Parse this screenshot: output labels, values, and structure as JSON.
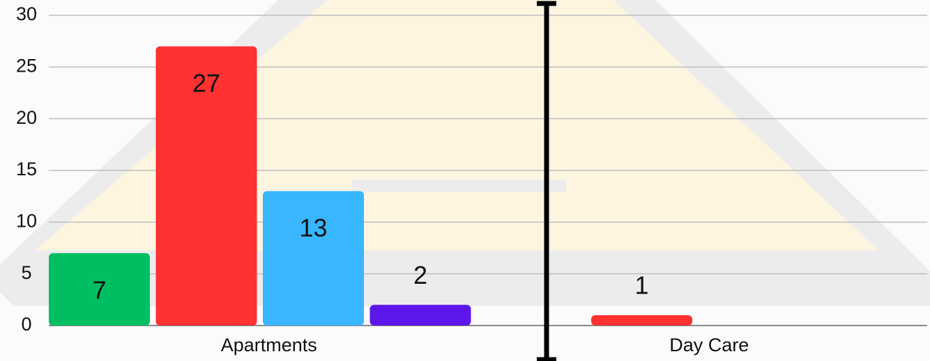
{
  "chart_data": {
    "type": "bar",
    "categories": [
      "Apartments",
      "Day Care"
    ],
    "series": [
      {
        "color": "#00bf63",
        "values": [
          7,
          null
        ]
      },
      {
        "color": "#ff3131",
        "values": [
          27,
          1
        ]
      },
      {
        "color": "#38b6ff",
        "values": [
          13,
          null
        ]
      },
      {
        "color": "#5e17eb",
        "values": [
          2,
          null
        ]
      }
    ],
    "ylim": [
      0,
      30
    ],
    "yticks": [
      0,
      5,
      10,
      15,
      20,
      25,
      30
    ],
    "grid": true
  }
}
